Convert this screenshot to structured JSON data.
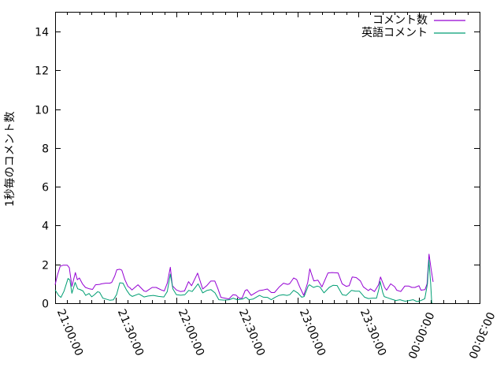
{
  "chart": {
    "background": "#ffffff",
    "border_color": "#000000",
    "text_color": "#000000"
  },
  "chart_data": {
    "type": "line",
    "title": "",
    "xlabel": "",
    "ylabel": "1秒毎のコメント数",
    "grid": false,
    "x_axis": {
      "kind": "time",
      "tick_labels": [
        "21:00:00",
        "21:30:00",
        "22:00:00",
        "22:30:00",
        "23:00:00",
        "23:30:00",
        "00:00:00",
        "00:30:00"
      ],
      "tick_minutes": [
        0,
        30,
        60,
        90,
        120,
        150,
        180,
        210
      ],
      "minor_tick_step_minutes": 6,
      "range_minutes": [
        0,
        210
      ],
      "label_rotation_deg": [
        67,
        67,
        67,
        67,
        67,
        67,
        113,
        113
      ]
    },
    "y_axis": {
      "ticks": [
        0,
        2,
        4,
        6,
        8,
        10,
        12,
        14
      ],
      "range": [
        0,
        15.02
      ]
    },
    "legend": {
      "position": "top-right-inside",
      "entries": [
        {
          "label": "コメント数",
          "color": "#9400d3"
        },
        {
          "label": "英語コメント",
          "color": "#009e73"
        }
      ]
    },
    "series": [
      {
        "name": "コメント数",
        "color": "#9400d3",
        "points": [
          [
            0,
            0.95
          ],
          [
            1,
            1.4
          ],
          [
            2.5,
            1.9
          ],
          [
            4,
            1.96
          ],
          [
            6,
            1.96
          ],
          [
            7,
            1.83
          ],
          [
            8.3,
            0.87
          ],
          [
            10,
            1.58
          ],
          [
            11,
            1.21
          ],
          [
            12,
            1.3
          ],
          [
            13.5,
            1.0
          ],
          [
            15,
            0.81
          ],
          [
            17,
            0.74
          ],
          [
            18.5,
            0.71
          ],
          [
            20,
            0.95
          ],
          [
            22,
            0.97
          ],
          [
            23,
            1.0
          ],
          [
            25,
            1.03
          ],
          [
            27,
            1.03
          ],
          [
            28,
            1.07
          ],
          [
            29.5,
            1.4
          ],
          [
            30.5,
            1.72
          ],
          [
            32,
            1.75
          ],
          [
            33,
            1.7
          ],
          [
            34.5,
            1.21
          ],
          [
            36,
            0.87
          ],
          [
            37,
            0.79
          ],
          [
            38,
            0.68
          ],
          [
            41,
            0.95
          ],
          [
            44,
            0.63
          ],
          [
            45,
            0.6
          ],
          [
            48,
            0.81
          ],
          [
            50,
            0.81
          ],
          [
            52.5,
            0.68
          ],
          [
            54,
            0.63
          ],
          [
            55.5,
            1.03
          ],
          [
            57,
            1.85
          ],
          [
            58,
            0.9
          ],
          [
            60,
            0.68
          ],
          [
            62,
            0.6
          ],
          [
            64,
            0.63
          ],
          [
            66,
            1.11
          ],
          [
            67.5,
            0.9
          ],
          [
            70.5,
            1.55
          ],
          [
            73,
            0.73
          ],
          [
            75,
            0.9
          ],
          [
            77,
            1.14
          ],
          [
            79,
            1.14
          ],
          [
            80.5,
            0.76
          ],
          [
            82,
            0.3
          ],
          [
            84,
            0.26
          ],
          [
            86,
            0.22
          ],
          [
            88,
            0.44
          ],
          [
            89.5,
            0.42
          ],
          [
            91,
            0.26
          ],
          [
            92.5,
            0.26
          ],
          [
            94,
            0.65
          ],
          [
            95,
            0.7
          ],
          [
            97,
            0.4
          ],
          [
            99,
            0.53
          ],
          [
            101,
            0.65
          ],
          [
            103,
            0.68
          ],
          [
            105,
            0.73
          ],
          [
            107,
            0.55
          ],
          [
            108.5,
            0.55
          ],
          [
            111,
            0.85
          ],
          [
            113,
            1.03
          ],
          [
            115,
            0.97
          ],
          [
            116,
            1.0
          ],
          [
            118,
            1.3
          ],
          [
            119.5,
            1.22
          ],
          [
            121,
            0.84
          ],
          [
            123,
            0.4
          ],
          [
            125,
            1.07
          ],
          [
            126,
            1.77
          ],
          [
            128,
            1.15
          ],
          [
            130,
            1.19
          ],
          [
            132,
            0.84
          ],
          [
            135,
            1.56
          ],
          [
            137,
            1.58
          ],
          [
            140,
            1.56
          ],
          [
            142,
            1.0
          ],
          [
            144,
            0.87
          ],
          [
            145.5,
            0.9
          ],
          [
            147,
            1.35
          ],
          [
            149,
            1.32
          ],
          [
            151,
            1.15
          ],
          [
            152.5,
            0.84
          ],
          [
            155,
            0.65
          ],
          [
            156,
            0.74
          ],
          [
            158,
            0.6
          ],
          [
            160,
            0.95
          ],
          [
            161,
            1.35
          ],
          [
            163,
            0.81
          ],
          [
            164,
            0.67
          ],
          [
            166,
            1.0
          ],
          [
            168,
            0.85
          ],
          [
            169,
            0.67
          ],
          [
            171,
            0.6
          ],
          [
            173,
            0.88
          ],
          [
            175,
            0.88
          ],
          [
            176.5,
            0.81
          ],
          [
            178,
            0.81
          ],
          [
            180,
            0.9
          ],
          [
            181,
            0.67
          ],
          [
            183,
            0.7
          ],
          [
            184,
            1.0
          ],
          [
            185,
            2.53
          ],
          [
            186,
            1.76
          ],
          [
            187,
            1.1
          ]
        ]
      },
      {
        "name": "英語コメント",
        "color": "#009e73",
        "points": [
          [
            0,
            0.68
          ],
          [
            1.8,
            0.39
          ],
          [
            2.9,
            0.3
          ],
          [
            4.4,
            0.62
          ],
          [
            6.4,
            1.27
          ],
          [
            7.3,
            1.2
          ],
          [
            8.3,
            0.51
          ],
          [
            9.9,
            1.07
          ],
          [
            11.2,
            0.74
          ],
          [
            12.2,
            0.71
          ],
          [
            13.8,
            0.63
          ],
          [
            15.1,
            0.4
          ],
          [
            16.8,
            0.5
          ],
          [
            18.1,
            0.33
          ],
          [
            19.4,
            0.43
          ],
          [
            21,
            0.59
          ],
          [
            22,
            0.56
          ],
          [
            23.6,
            0.26
          ],
          [
            25.2,
            0.21
          ],
          [
            27.1,
            0.15
          ],
          [
            28.8,
            0.17
          ],
          [
            30.4,
            0.44
          ],
          [
            32,
            1.05
          ],
          [
            33.6,
            1.03
          ],
          [
            35.3,
            0.68
          ],
          [
            36.9,
            0.44
          ],
          [
            38.2,
            0.35
          ],
          [
            41.4,
            0.48
          ],
          [
            44,
            0.32
          ],
          [
            46,
            0.37
          ],
          [
            48.6,
            0.4
          ],
          [
            51.2,
            0.35
          ],
          [
            53.8,
            0.32
          ],
          [
            55.5,
            0.6
          ],
          [
            57,
            1.5
          ],
          [
            58.3,
            0.73
          ],
          [
            60,
            0.44
          ],
          [
            62.2,
            0.41
          ],
          [
            64.2,
            0.44
          ],
          [
            66.1,
            0.66
          ],
          [
            67.8,
            0.6
          ],
          [
            70.7,
            1.0
          ],
          [
            73,
            0.53
          ],
          [
            75.2,
            0.66
          ],
          [
            77.1,
            0.7
          ],
          [
            79.1,
            0.53
          ],
          [
            81,
            0.18
          ],
          [
            83.6,
            0.16
          ],
          [
            86.2,
            0.18
          ],
          [
            88.1,
            0.26
          ],
          [
            90.1,
            0.18
          ],
          [
            92.7,
            0.21
          ],
          [
            94.4,
            0.31
          ],
          [
            95.9,
            0.18
          ],
          [
            97.9,
            0.21
          ],
          [
            101.1,
            0.4
          ],
          [
            103,
            0.31
          ],
          [
            105,
            0.3
          ],
          [
            106.9,
            0.18
          ],
          [
            108.9,
            0.31
          ],
          [
            110.8,
            0.4
          ],
          [
            112.8,
            0.44
          ],
          [
            114.7,
            0.4
          ],
          [
            116.1,
            0.44
          ],
          [
            118,
            0.66
          ],
          [
            120,
            0.53
          ],
          [
            122,
            0.31
          ],
          [
            123.2,
            0.34
          ],
          [
            125.2,
            0.88
          ],
          [
            125.8,
            0.95
          ],
          [
            127.8,
            0.81
          ],
          [
            129.7,
            0.88
          ],
          [
            131,
            0.84
          ],
          [
            133,
            0.53
          ],
          [
            135.6,
            0.81
          ],
          [
            137.5,
            0.92
          ],
          [
            139.5,
            0.91
          ],
          [
            142.1,
            0.44
          ],
          [
            144,
            0.4
          ],
          [
            146.6,
            0.66
          ],
          [
            148.6,
            0.62
          ],
          [
            150.5,
            0.62
          ],
          [
            153.1,
            0.31
          ],
          [
            155,
            0.24
          ],
          [
            157,
            0.26
          ],
          [
            159,
            0.26
          ],
          [
            160.2,
            0.74
          ],
          [
            160.8,
            1.12
          ],
          [
            162.1,
            0.54
          ],
          [
            162.8,
            0.34
          ],
          [
            164.7,
            0.27
          ],
          [
            166.7,
            0.2
          ],
          [
            168.6,
            0.14
          ],
          [
            170.6,
            0.18
          ],
          [
            171.9,
            0.14
          ],
          [
            173.2,
            0.1
          ],
          [
            175.1,
            0.14
          ],
          [
            177.1,
            0.18
          ],
          [
            179,
            0.08
          ],
          [
            181,
            0.14
          ],
          [
            182.9,
            0.23
          ],
          [
            184.2,
            1.0
          ],
          [
            184.9,
            2.23
          ],
          [
            185.8,
            1.0
          ],
          [
            186.3,
            0.05
          ],
          [
            186.6,
            0
          ]
        ]
      }
    ]
  }
}
